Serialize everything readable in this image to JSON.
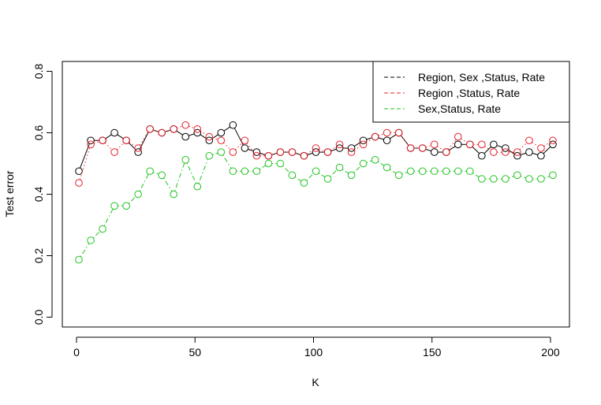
{
  "chart_data": {
    "type": "line",
    "title": "",
    "xlabel": "K",
    "ylabel": "Test error",
    "xlim": [
      -6,
      208
    ],
    "ylim": [
      -0.032,
      0.832
    ],
    "x_ticks": [
      0,
      50,
      100,
      150,
      200
    ],
    "y_ticks": [
      0.0,
      0.2,
      0.4,
      0.6,
      0.8
    ],
    "x_tick_labels": [
      "0",
      "50",
      "100",
      "150",
      "200"
    ],
    "y_tick_labels": [
      "0.0",
      "0.2",
      "0.4",
      "0.6",
      "0.8"
    ],
    "grid": false,
    "legend_position": "top-right",
    "x": [
      1,
      6,
      11,
      16,
      21,
      26,
      31,
      36,
      41,
      46,
      51,
      56,
      61,
      66,
      71,
      76,
      81,
      86,
      91,
      96,
      101,
      106,
      111,
      116,
      121,
      126,
      131,
      136,
      141,
      146,
      151,
      156,
      161,
      166,
      171,
      176,
      181,
      186,
      191,
      196,
      201
    ],
    "series": [
      {
        "name": "Region, Sex ,Status, Rate",
        "color": "#000000",
        "line_style": "solid",
        "values": [
          0.475,
          0.575,
          0.575,
          0.6,
          0.575,
          0.537,
          0.612,
          0.6,
          0.612,
          0.587,
          0.6,
          0.575,
          0.6,
          0.625,
          0.55,
          0.537,
          0.525,
          0.537,
          0.537,
          0.525,
          0.537,
          0.537,
          0.55,
          0.55,
          0.575,
          0.587,
          0.575,
          0.6,
          0.55,
          0.55,
          0.537,
          0.537,
          0.562,
          0.562,
          0.525,
          0.562,
          0.55,
          0.525,
          0.537,
          0.525,
          0.562
        ]
      },
      {
        "name": "Region ,Status, Rate",
        "color": "#e8202a",
        "line_style": "dotted",
        "values": [
          0.437,
          0.562,
          0.575,
          0.537,
          0.575,
          0.55,
          0.612,
          0.6,
          0.612,
          0.625,
          0.612,
          0.587,
          0.575,
          0.537,
          0.575,
          0.525,
          0.525,
          0.537,
          0.537,
          0.525,
          0.55,
          0.537,
          0.562,
          0.537,
          0.562,
          0.587,
          0.6,
          0.6,
          0.55,
          0.55,
          0.562,
          0.537,
          0.587,
          0.562,
          0.562,
          0.537,
          0.537,
          0.537,
          0.575,
          0.55,
          0.575
        ]
      },
      {
        "name": "Sex,Status, Rate",
        "color": "#21c421",
        "line_style": "dashdot",
        "values": [
          0.187,
          0.25,
          0.287,
          0.362,
          0.362,
          0.4,
          0.475,
          0.462,
          0.4,
          0.512,
          0.425,
          0.525,
          0.537,
          0.475,
          0.475,
          0.475,
          0.5,
          0.5,
          0.462,
          0.437,
          0.475,
          0.45,
          0.487,
          0.462,
          0.5,
          0.512,
          0.487,
          0.462,
          0.475,
          0.475,
          0.475,
          0.475,
          0.475,
          0.475,
          0.45,
          0.45,
          0.45,
          0.462,
          0.45,
          0.45,
          0.462
        ]
      }
    ]
  }
}
